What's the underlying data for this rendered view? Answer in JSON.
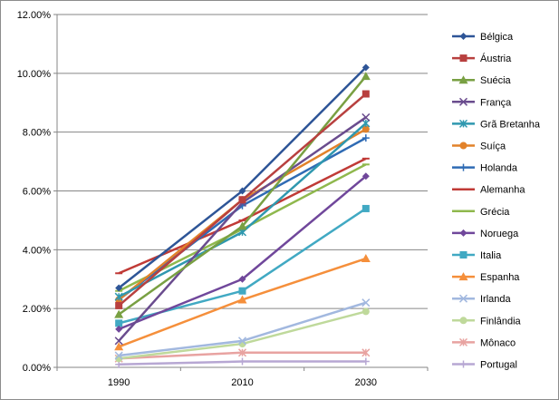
{
  "chart_data": {
    "type": "line",
    "x": [
      "1990",
      "2010",
      "2030"
    ],
    "ylim": [
      0,
      12
    ],
    "y_ticks": [
      "0.00%",
      "2.00%",
      "4.00%",
      "6.00%",
      "8.00%",
      "10.00%",
      "12.00%"
    ],
    "grid": "horizontal",
    "legend_position": "right",
    "series": [
      {
        "name": "Bélgica",
        "values": [
          2.7,
          6.0,
          10.2
        ],
        "color": "#2E5597",
        "marker": "diamond"
      },
      {
        "name": "Áustria",
        "values": [
          2.1,
          5.7,
          9.3
        ],
        "color": "#B8403F",
        "marker": "square"
      },
      {
        "name": "Suécia",
        "values": [
          1.8,
          4.8,
          9.9
        ],
        "color": "#79A043",
        "marker": "triangle"
      },
      {
        "name": "França",
        "values": [
          0.9,
          5.6,
          8.5
        ],
        "color": "#6A4C8E",
        "marker": "x"
      },
      {
        "name": "Grã Bretanha",
        "values": [
          2.4,
          4.6,
          8.3
        ],
        "color": "#2F98AF",
        "marker": "star"
      },
      {
        "name": "Suíça",
        "values": [
          2.3,
          5.7,
          8.1
        ],
        "color": "#E2822A",
        "marker": "circle"
      },
      {
        "name": "Holanda",
        "values": [
          2.3,
          5.5,
          7.8
        ],
        "color": "#2F6BB4",
        "marker": "plus"
      },
      {
        "name": "Alemanha",
        "values": [
          3.2,
          5.0,
          7.1
        ],
        "color": "#C03A36",
        "marker": "dash"
      },
      {
        "name": "Grécia",
        "values": [
          2.6,
          4.7,
          6.9
        ],
        "color": "#8FB84D",
        "marker": "dash"
      },
      {
        "name": "Noruega",
        "values": [
          1.3,
          3.0,
          6.5
        ],
        "color": "#70479B",
        "marker": "diamond"
      },
      {
        "name": "Italia",
        "values": [
          1.5,
          2.6,
          5.4
        ],
        "color": "#41A9C3",
        "marker": "square"
      },
      {
        "name": "Espanha",
        "values": [
          0.7,
          2.3,
          3.7
        ],
        "color": "#F58F3B",
        "marker": "triangle"
      },
      {
        "name": "Irlanda",
        "values": [
          0.4,
          0.9,
          2.2
        ],
        "color": "#A2B8DF",
        "marker": "x"
      },
      {
        "name": "Finlândia",
        "values": [
          0.3,
          0.8,
          1.9
        ],
        "color": "#BFD99B",
        "marker": "circle"
      },
      {
        "name": "Mônaco",
        "values": [
          0.3,
          0.5,
          0.5
        ],
        "color": "#E8A3A1",
        "marker": "star"
      },
      {
        "name": "Portugal",
        "values": [
          0.1,
          0.2,
          0.2
        ],
        "color": "#B7A7D3",
        "marker": "plus"
      }
    ]
  }
}
